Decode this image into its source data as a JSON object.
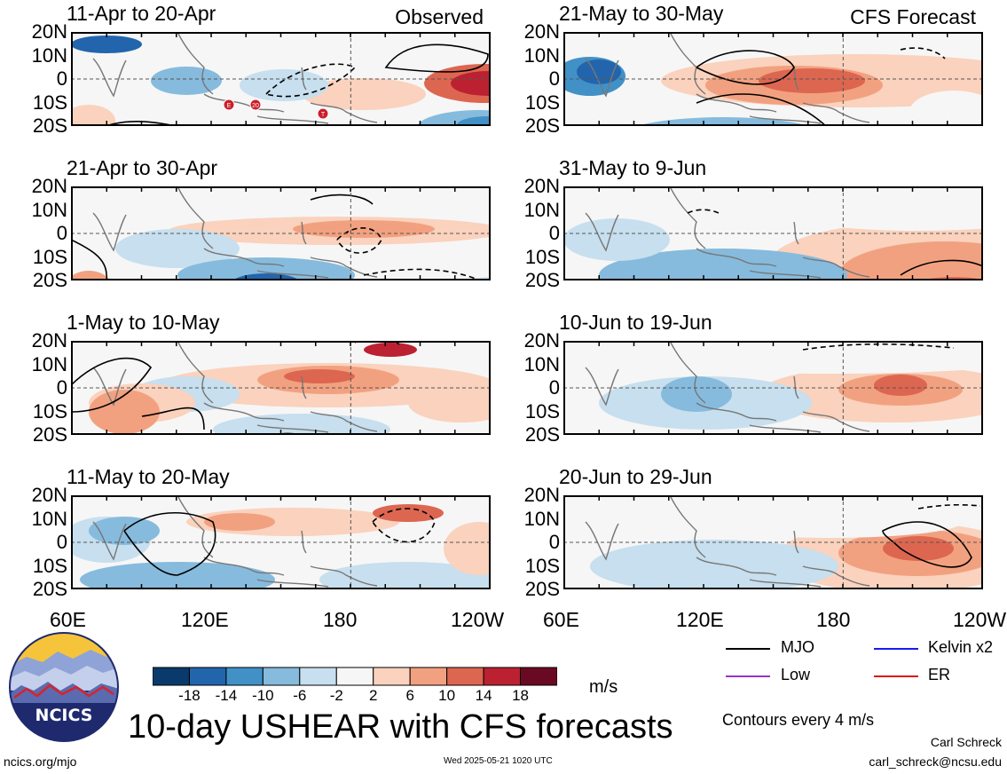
{
  "panels": [
    {
      "title": "11-Apr to 20-Apr",
      "tag": "Observed"
    },
    {
      "title": "21-Apr to 30-Apr",
      "tag": ""
    },
    {
      "title": "1-May to 10-May",
      "tag": ""
    },
    {
      "title": "11-May to 20-May",
      "tag": ""
    },
    {
      "title": "21-May to 30-May",
      "tag": "CFS Forecast"
    },
    {
      "title": "31-May to 9-Jun",
      "tag": ""
    },
    {
      "title": "10-Jun to 19-Jun",
      "tag": ""
    },
    {
      "title": "20-Jun to 29-Jun",
      "tag": ""
    }
  ],
  "lat_labels": [
    "20N",
    "10N",
    "0",
    "10S",
    "20S"
  ],
  "lon_labels": [
    "60E",
    "120E",
    "180",
    "120W"
  ],
  "storm_markers": [
    "E",
    "20",
    "T"
  ],
  "colorbar": {
    "labels": [
      "-18",
      "-14",
      "-10",
      "-6",
      "-2",
      "2",
      "6",
      "10",
      "14",
      "18"
    ],
    "colors": [
      "#0a3a6b",
      "#2265ad",
      "#4191c7",
      "#86bbdd",
      "#c7dfee",
      "#f6f6f6",
      "#fad2bd",
      "#f2a180",
      "#dd6650",
      "#bb2131",
      "#6a0a22"
    ],
    "unit": "m/s"
  },
  "legend": {
    "items": [
      {
        "label": "MJO",
        "color": "#000000"
      },
      {
        "label": "Kelvin x2",
        "color": "#1a1aee"
      },
      {
        "label": "Low",
        "color": "#9933cc"
      },
      {
        "label": "ER",
        "color": "#dd1111"
      }
    ],
    "contour_note": "Contours every 4 m/s"
  },
  "main_title": "10-day USHEAR with CFS forecasts",
  "logo_text": "NCICS",
  "footer": {
    "left": "ncics.org/mjo",
    "center": "Wed 2025-05-21 1020 UTC",
    "author": "Carl Schreck",
    "email": "carl_schreck@ncsu.edu"
  }
}
